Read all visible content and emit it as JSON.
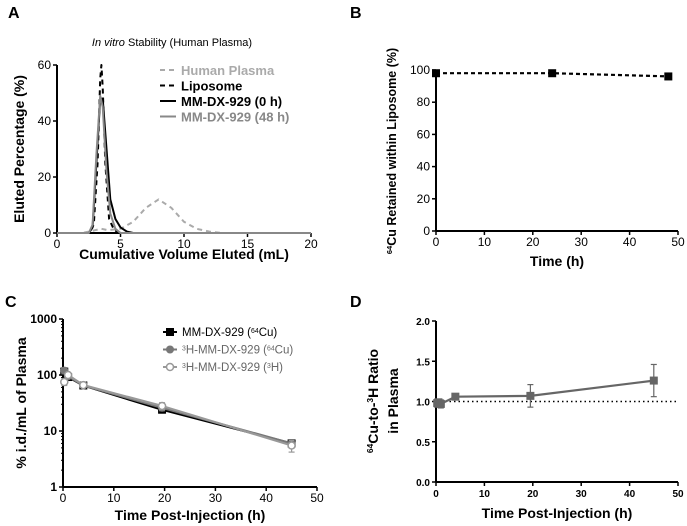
{
  "chart_data": [
    {
      "panel": "A",
      "type": "line",
      "title": [
        {
          "t": "In vitro",
          "it": true
        },
        {
          "t": " Stability (Human Plasma)"
        }
      ],
      "xlabel": [
        {
          "t": "Cumulative Volume Eluted (mL)"
        }
      ],
      "ylabel": [
        {
          "t": "Eluted Percentage (%)"
        }
      ],
      "xlim": [
        0,
        20
      ],
      "ylim": [
        0,
        60
      ],
      "xticks": [
        "0",
        "5",
        "10",
        "15",
        "20"
      ],
      "yticks": [
        "0",
        "20",
        "40",
        "60"
      ],
      "legend_position": "top-right",
      "series": [
        {
          "name": "Human Plasma",
          "color": "#aaaaaa",
          "dash": true,
          "x": [
            0,
            2,
            3,
            3.5,
            4,
            5,
            6,
            7,
            8,
            9,
            10,
            11,
            12,
            13,
            20
          ],
          "y": [
            0,
            0,
            1,
            1.5,
            1,
            1.5,
            4,
            9,
            12,
            9,
            4,
            1.5,
            0.5,
            0,
            0
          ]
        },
        {
          "name": "Liposome",
          "color": "#000000",
          "dash": true,
          "x": [
            0,
            2.5,
            2.9,
            3.2,
            3.4,
            3.5,
            3.6,
            3.8,
            4.1,
            4.5,
            5,
            20
          ],
          "y": [
            0,
            0,
            3,
            25,
            55,
            60,
            52,
            25,
            5,
            1,
            0,
            0
          ]
        },
        {
          "name": "MM-DX-929 (0 h)",
          "color": "#000000",
          "dash": false,
          "x": [
            0,
            2.5,
            2.8,
            3.1,
            3.4,
            3.6,
            3.9,
            4.2,
            4.6,
            5,
            5.5,
            6,
            20
          ],
          "y": [
            0,
            0,
            2,
            25,
            48,
            48,
            30,
            12,
            5,
            2,
            0.5,
            0,
            0
          ]
        },
        {
          "name": "MM-DX-929 (48 h)",
          "color": "#888888",
          "dash": false,
          "x": [
            0,
            2.5,
            2.8,
            3.1,
            3.4,
            3.6,
            3.9,
            4.2,
            4.6,
            5,
            20
          ],
          "y": [
            0,
            0,
            3,
            28,
            49,
            45,
            22,
            7,
            1.5,
            0,
            0
          ]
        }
      ]
    },
    {
      "panel": "B",
      "type": "line",
      "xlabel": [
        {
          "t": "Time (h)"
        }
      ],
      "ylabel": [
        {
          "t": "64",
          "sup": true
        },
        {
          "t": "Cu Retained within Liposome (%)"
        }
      ],
      "xlim": [
        0,
        50
      ],
      "ylim": [
        0,
        100
      ],
      "xticks": [
        "0",
        "10",
        "20",
        "30",
        "40",
        "50"
      ],
      "yticks": [
        "0",
        "20",
        "40",
        "60",
        "80",
        "100"
      ],
      "series": [
        {
          "color": "#000000",
          "dash": true,
          "marker": "square",
          "x": [
            0,
            24,
            48
          ],
          "y": [
            98,
            98,
            96
          ]
        }
      ]
    },
    {
      "panel": "C",
      "type": "line",
      "xlabel": [
        {
          "t": "Time Post-Injection (h)"
        }
      ],
      "ylabel": [
        {
          "t": "% i.d./mL of Plasma"
        }
      ],
      "xlim": [
        0,
        50
      ],
      "ylim": [
        1,
        1000
      ],
      "yscale": "log",
      "xticks": [
        "0",
        "10",
        "20",
        "30",
        "40",
        "50"
      ],
      "yticks": [
        "1",
        "10",
        "100",
        "1000"
      ],
      "legend_position": "top-right",
      "series": [
        {
          "name": [
            {
              "t": "MM-DX-929 ("
            },
            {
              "t": "64",
              "sup": true
            },
            {
              "t": "Cu)"
            }
          ],
          "color": "#000000",
          "marker": "square",
          "x": [
            0.25,
            1,
            4,
            19.5,
            45
          ],
          "y": [
            115,
            92,
            65,
            24,
            6
          ],
          "err": [
            15,
            8,
            4,
            3,
            1
          ]
        },
        {
          "name": [
            {
              "t": "3",
              "sup": true
            },
            {
              "t": "H-MM-DX-929 ("
            },
            {
              "t": "64",
              "sup": true
            },
            {
              "t": "Cu)"
            }
          ],
          "color": "#777777",
          "marker": "circle",
          "x": [
            0.25,
            1,
            4,
            19.5,
            45
          ],
          "y": [
            120,
            95,
            65,
            26,
            6
          ],
          "err": [
            15,
            8,
            4,
            3,
            1
          ]
        },
        {
          "name": [
            {
              "t": "3",
              "sup": true
            },
            {
              "t": "H-MM-DX-929 ("
            },
            {
              "t": "3",
              "sup": true
            },
            {
              "t": "H)"
            }
          ],
          "color": "#999999",
          "marker": "open-circle",
          "x": [
            0.25,
            1,
            4,
            19.5,
            45
          ],
          "y": [
            75,
            100,
            66,
            28,
            5.5
          ],
          "err": [
            10,
            8,
            4,
            4,
            1.3
          ]
        }
      ]
    },
    {
      "panel": "D",
      "type": "line",
      "xlabel": [
        {
          "t": "Time Post-Injection (h)"
        }
      ],
      "ylabel": [
        {
          "t": "64",
          "sup": true
        },
        {
          "t": "Cu-to-"
        },
        {
          "t": "3",
          "sup": true
        },
        {
          "t": "H Ratio"
        }
      ],
      "ylabel2": [
        {
          "t": "in Plasma"
        }
      ],
      "xlim": [
        0,
        50
      ],
      "ylim": [
        0,
        2.0
      ],
      "xticks": [
        "0",
        "10",
        "20",
        "30",
        "40",
        "50"
      ],
      "yticks": [
        "0.0",
        "0.5",
        "1.0",
        "1.5",
        "2.0"
      ],
      "reference_line": 1.0,
      "series": [
        {
          "color": "#666666",
          "marker": "square",
          "x": [
            0.25,
            0.5,
            1,
            4,
            19.5,
            45
          ],
          "y": [
            0.98,
            0.99,
            0.97,
            1.06,
            1.07,
            1.26
          ],
          "err": [
            0.05,
            0.04,
            0.05,
            0.02,
            0.14,
            0.2
          ]
        }
      ]
    }
  ]
}
